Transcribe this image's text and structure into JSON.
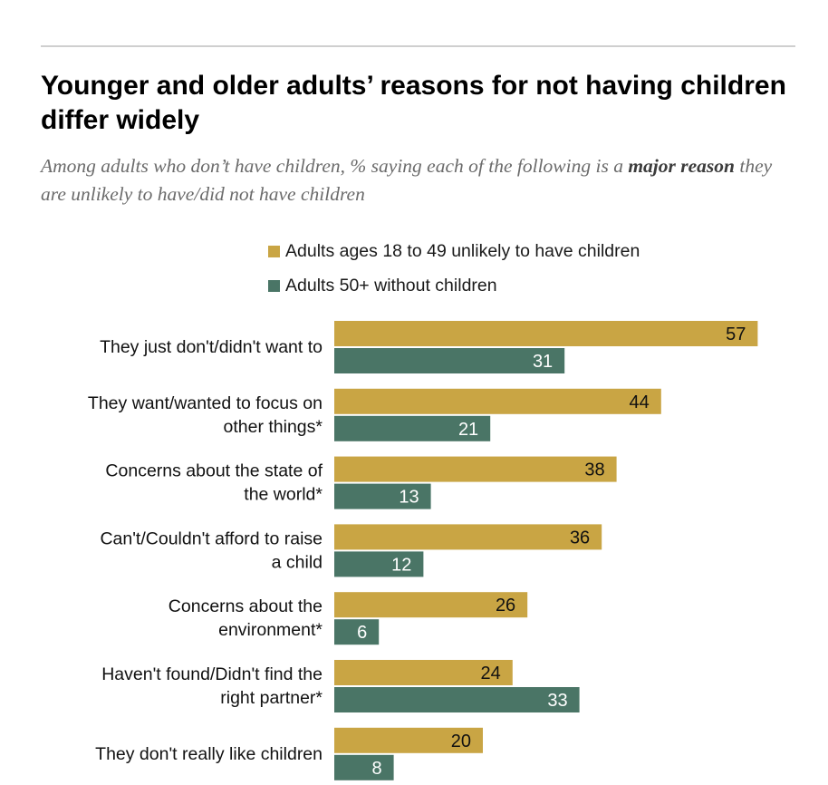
{
  "header": {
    "title": "Younger and older adults’ reasons for not having children differ widely",
    "subtitle_part1": "Among adults who don’t have children, % saying each of the following is a ",
    "subtitle_bold": "major reason",
    "subtitle_part2": " they are unlikely to have/did not have children"
  },
  "colors": {
    "series1": "#c9a544",
    "series2": "#4a7566",
    "label_on_gold": "#111111",
    "label_on_green": "#ffffff"
  },
  "chart_data": {
    "type": "bar",
    "orientation": "horizontal",
    "title": "Younger and older adults’ reasons for not having children differ widely",
    "legend_position": "top",
    "grid": false,
    "xlim": [
      0,
      60
    ],
    "categories": [
      [
        "They just don't/didn't want to"
      ],
      [
        "They want/wanted to focus on",
        "other things*"
      ],
      [
        "Concerns about the state of",
        "the world*"
      ],
      [
        "Can't/Couldn't afford to raise",
        "a child"
      ],
      [
        "Concerns about the",
        "environment*"
      ],
      [
        "Haven't found/Didn't find the",
        "right partner*"
      ],
      [
        "They don't really like children"
      ]
    ],
    "series": [
      {
        "name": "Adults ages 18 to 49 unlikely to have children",
        "values": [
          57,
          44,
          38,
          36,
          26,
          24,
          20
        ]
      },
      {
        "name": "Adults 50+ without children",
        "values": [
          31,
          21,
          13,
          12,
          6,
          33,
          8
        ]
      }
    ]
  }
}
